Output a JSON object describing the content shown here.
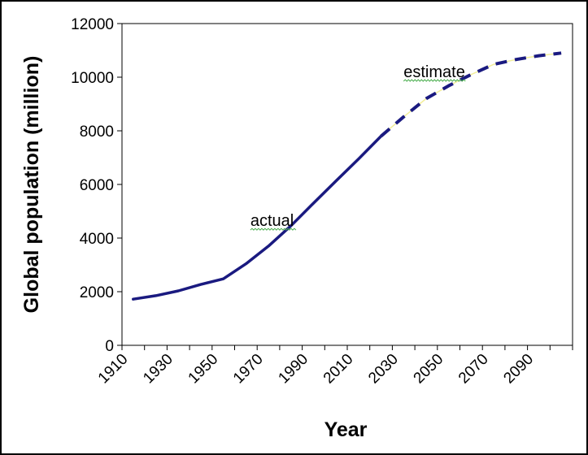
{
  "chart_data": {
    "type": "line",
    "title": "",
    "xlabel": "Year",
    "ylabel": "Global population (million)",
    "xlim": [
      1910,
      2110
    ],
    "ylim": [
      0,
      12000
    ],
    "x_tick_labels": [
      "1910",
      "1930",
      "1950",
      "1970",
      "1990",
      "2010",
      "2030",
      "2050",
      "2070",
      "2090"
    ],
    "y_tick_labels": [
      "0",
      "2000",
      "4000",
      "6000",
      "8000",
      "10000",
      "12000"
    ],
    "grid": false,
    "legend": "none",
    "series": [
      {
        "style": "solid",
        "color": "#1a1a80",
        "x": [
          1915,
          1925,
          1935,
          1945,
          1955,
          1965,
          1975,
          1985,
          1995,
          2005,
          2015,
          2025
        ],
        "y": [
          1720,
          1850,
          2030,
          2270,
          2480,
          3040,
          3700,
          4460,
          5300,
          6130,
          6950,
          7800
        ]
      },
      {
        "style": "dashed",
        "color": "#1a1a80",
        "x": [
          2025,
          2035,
          2045,
          2055,
          2065,
          2075,
          2085,
          2095,
          2105
        ],
        "y": [
          7800,
          8520,
          9200,
          9680,
          10100,
          10480,
          10660,
          10800,
          10900
        ]
      }
    ],
    "annotations": [
      {
        "text": "actual",
        "x": 1967,
        "y": 4450
      },
      {
        "text": "estimate",
        "x": 2035,
        "y": 10000
      }
    ]
  }
}
